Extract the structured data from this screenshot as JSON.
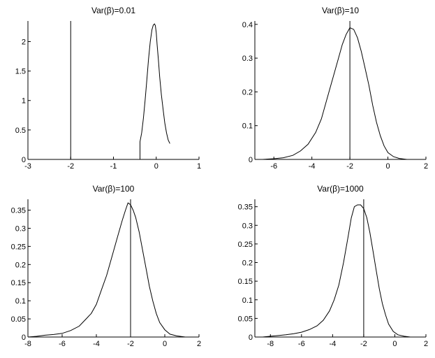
{
  "chart_data": [
    {
      "type": "line",
      "title": "Var(β)=0.01",
      "xlim": [
        -3,
        1
      ],
      "ylim": [
        0,
        2.35
      ],
      "xticks": [
        "-3",
        "-2",
        "-1",
        "0",
        "1"
      ],
      "yticks": [
        "0",
        "0.5",
        "1",
        "1.5",
        "2"
      ],
      "vline_x": -2,
      "series": [
        {
          "x": [
            -0.38,
            -0.38,
            -0.34,
            -0.3,
            -0.26,
            -0.22,
            -0.18,
            -0.14,
            -0.1,
            -0.07,
            -0.04,
            -0.02,
            0,
            0.02,
            0.05,
            0.08,
            0.12,
            0.16,
            0.2,
            0.24,
            0.28,
            0.32
          ],
          "y": [
            0,
            0.3,
            0.45,
            0.7,
            1.0,
            1.35,
            1.7,
            2.0,
            2.2,
            2.28,
            2.3,
            2.27,
            2.15,
            1.95,
            1.7,
            1.4,
            1.1,
            0.85,
            0.62,
            0.45,
            0.33,
            0.27
          ]
        }
      ]
    },
    {
      "type": "line",
      "title": "Var(β)=10",
      "xlim": [
        -7,
        2
      ],
      "ylim": [
        0,
        0.41
      ],
      "xticks": [
        "-6",
        "-4",
        "-2",
        "0",
        "2"
      ],
      "yticks": [
        "0",
        "0.1",
        "0.2",
        "0.3",
        "0.4"
      ],
      "vline_x": -2,
      "series": [
        {
          "x": [
            -6.6,
            -6.0,
            -5.5,
            -5.0,
            -4.6,
            -4.2,
            -3.8,
            -3.5,
            -3.2,
            -2.9,
            -2.6,
            -2.4,
            -2.2,
            -2.0,
            -1.8,
            -1.6,
            -1.4,
            -1.2,
            -1.0,
            -0.8,
            -0.6,
            -0.4,
            -0.2,
            0.0,
            0.3,
            0.6,
            1.0
          ],
          "y": [
            0.0,
            0.002,
            0.005,
            0.012,
            0.025,
            0.045,
            0.08,
            0.12,
            0.18,
            0.24,
            0.3,
            0.34,
            0.37,
            0.39,
            0.385,
            0.36,
            0.32,
            0.27,
            0.22,
            0.16,
            0.11,
            0.07,
            0.04,
            0.02,
            0.008,
            0.003,
            0.0
          ]
        }
      ]
    },
    {
      "type": "line",
      "title": "Var(β)=100",
      "xlim": [
        -8,
        2
      ],
      "ylim": [
        0,
        0.38
      ],
      "xticks": [
        "-8",
        "-6",
        "-4",
        "-2",
        "0",
        "2"
      ],
      "yticks": [
        "0",
        "0.05",
        "0.1",
        "0.15",
        "0.2",
        "0.25",
        "0.3",
        "0.35"
      ],
      "vline_x": -2,
      "series": [
        {
          "x": [
            -8.0,
            -7.5,
            -7.0,
            -6.5,
            -6.0,
            -5.5,
            -5.0,
            -4.6,
            -4.3,
            -4.0,
            -3.7,
            -3.4,
            -3.1,
            -2.8,
            -2.5,
            -2.3,
            -2.15,
            -2.0,
            -1.85,
            -1.7,
            -1.5,
            -1.3,
            -1.1,
            -0.9,
            -0.7,
            -0.5,
            -0.3,
            0.0,
            0.3,
            0.7,
            1.2
          ],
          "y": [
            0.0,
            0.002,
            0.005,
            0.007,
            0.01,
            0.018,
            0.03,
            0.05,
            0.065,
            0.09,
            0.13,
            0.17,
            0.22,
            0.27,
            0.32,
            0.35,
            0.37,
            0.365,
            0.35,
            0.33,
            0.29,
            0.24,
            0.19,
            0.14,
            0.1,
            0.065,
            0.04,
            0.02,
            0.008,
            0.003,
            0.0
          ]
        }
      ]
    },
    {
      "type": "line",
      "title": "Var(β)=1000",
      "xlim": [
        -9,
        2
      ],
      "ylim": [
        0,
        0.37
      ],
      "xticks": [
        "-8",
        "-6",
        "-4",
        "-2",
        "0",
        "2"
      ],
      "yticks": [
        "0",
        "0.05",
        "0.1",
        "0.15",
        "0.2",
        "0.25",
        "0.3",
        "0.35"
      ],
      "vline_x": -2,
      "series": [
        {
          "x": [
            -8.5,
            -8.0,
            -7.5,
            -7.0,
            -6.5,
            -6.0,
            -5.5,
            -5.0,
            -4.6,
            -4.2,
            -3.9,
            -3.6,
            -3.3,
            -3.0,
            -2.8,
            -2.6,
            -2.4,
            -2.2,
            -2.0,
            -1.8,
            -1.6,
            -1.4,
            -1.2,
            -1.0,
            -0.8,
            -0.6,
            -0.4,
            -0.1,
            0.2,
            0.6,
            1.0
          ],
          "y": [
            0.0,
            0.002,
            0.004,
            0.006,
            0.009,
            0.013,
            0.02,
            0.03,
            0.045,
            0.07,
            0.1,
            0.14,
            0.2,
            0.27,
            0.32,
            0.35,
            0.355,
            0.355,
            0.345,
            0.32,
            0.28,
            0.23,
            0.18,
            0.13,
            0.09,
            0.06,
            0.035,
            0.015,
            0.006,
            0.002,
            0.0
          ]
        }
      ]
    }
  ]
}
